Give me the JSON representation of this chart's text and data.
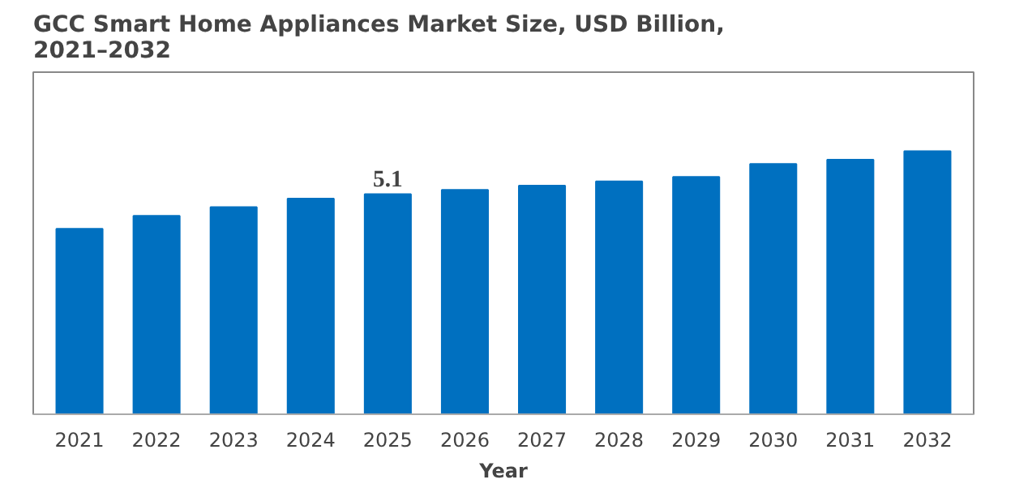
{
  "chart_data": {
    "type": "bar",
    "title": "GCC Smart Home Appliances Market Size, USD Billion, 2021–2032",
    "xlabel": "Year",
    "categories": [
      "2021",
      "2022",
      "2023",
      "2024",
      "2025",
      "2026",
      "2027",
      "2028",
      "2029",
      "2030",
      "2031",
      "2032"
    ],
    "values": [
      4.3,
      4.6,
      4.8,
      5.0,
      5.1,
      5.2,
      5.3,
      5.4,
      5.5,
      5.8,
      5.9,
      6.1
    ],
    "value_labels": [
      null,
      null,
      null,
      null,
      "5.1",
      null,
      null,
      null,
      null,
      null,
      null,
      null
    ],
    "color": "#0070c0",
    "grid": false
  }
}
